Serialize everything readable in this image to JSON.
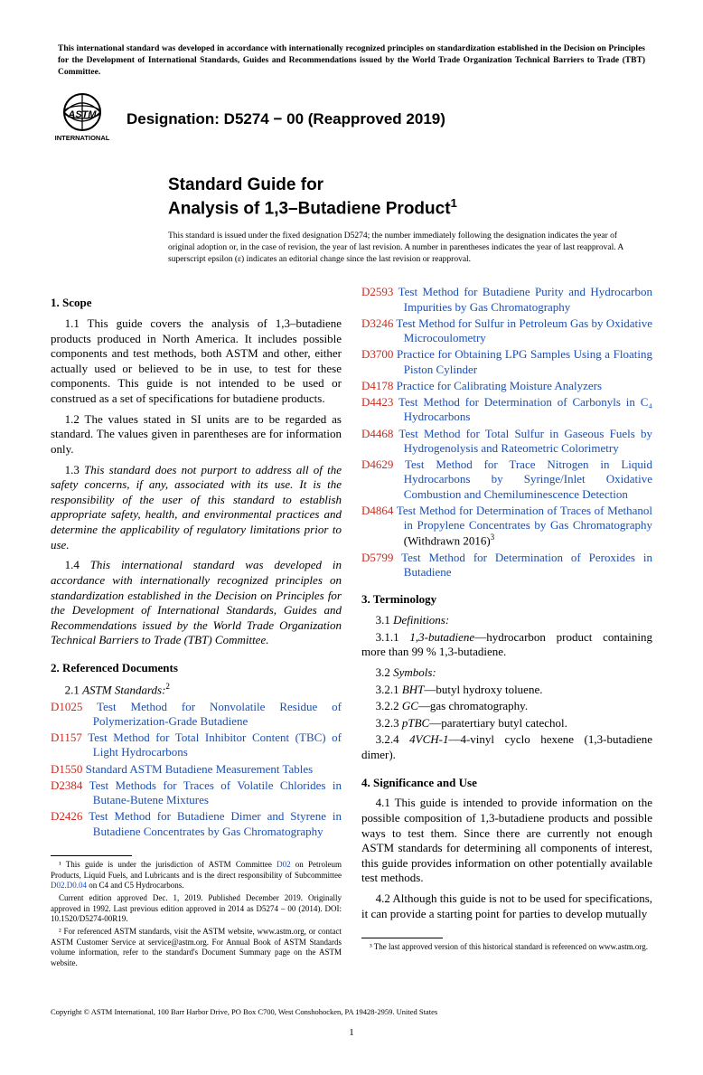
{
  "preamble": "This international standard was developed in accordance with internationally recognized principles on standardization established in the Decision on Principles for the Development of International Standards, Guides and Recommendations issued by the World Trade Organization Technical Barriers to Trade (TBT) Committee.",
  "logo_top": "INTERNATIONAL",
  "designation": "Designation: D5274 − 00 (Reapproved 2019)",
  "title_line1": "Standard Guide for",
  "title_line2": "Analysis of 1,3–Butadiene Product",
  "title_sup": "1",
  "issuance": "This standard is issued under the fixed designation D5274; the number immediately following the designation indicates the year of original adoption or, in the case of revision, the year of last revision. A number in parentheses indicates the year of last reapproval. A superscript epsilon (ε) indicates an editorial change since the last revision or reapproval.",
  "sec1_head": "1. Scope",
  "sec1_1": "1.1 This guide covers the analysis of 1,3–butadiene products produced in North America. It includes possible components and test methods, both ASTM and other, either actually used or believed to be in use, to test for these components. This guide is not intended to be used or construed as a set of specifications for butadiene products.",
  "sec1_2": "1.2 The values stated in SI units are to be regarded as standard. The values given in parentheses are for information only.",
  "sec1_3": "1.3 This standard does not purport to address all of the safety concerns, if any, associated with its use. It is the responsibility of the user of this standard to establish appropriate safety, health, and environmental practices and determine the applicability of regulatory limitations prior to use.",
  "sec1_4": "1.4 This international standard was developed in accordance with internationally recognized principles on standardization established in the Decision on Principles for the Development of International Standards, Guides and Recommendations issued by the World Trade Organization Technical Barriers to Trade (TBT) Committee.",
  "sec2_head": "2. Referenced Documents",
  "sec2_1_label": "2.1 ",
  "sec2_1_text": "ASTM Standards:",
  "sec2_1_sup": "2",
  "refs_left": [
    {
      "code": "D1025",
      "title": "Test Method for Nonvolatile Residue of Polymerization-Grade Butadiene"
    },
    {
      "code": "D1157",
      "title": "Test Method for Total Inhibitor Content (TBC) of Light Hydrocarbons"
    },
    {
      "code": "D1550",
      "title": "Standard ASTM Butadiene Measurement Tables"
    },
    {
      "code": "D2384",
      "title": "Test Methods for Traces of Volatile Chlorides in Butane-Butene Mixtures"
    },
    {
      "code": "D2426",
      "title": "Test Method for Butadiene Dimer and Styrene in Butadiene Concentrates by Gas Chromatography"
    }
  ],
  "refs_right": [
    {
      "code": "D2593",
      "title": "Test Method for Butadiene Purity and Hydrocarbon Impurities by Gas Chromatography"
    },
    {
      "code": "D3246",
      "title": "Test Method for Sulfur in Petroleum Gas by Oxidative Microcoulometry"
    },
    {
      "code": "D3700",
      "title": "Practice for Obtaining LPG Samples Using a Floating Piston Cylinder"
    },
    {
      "code": "D4178",
      "title": "Practice for Calibrating Moisture Analyzers"
    },
    {
      "code": "D4423",
      "title": "Test Method for Determination of Carbonyls in C₄ Hydrocarbons"
    },
    {
      "code": "D4468",
      "title": "Test Method for Total Sulfur in Gaseous Fuels by Hydrogenolysis and Rateometric Colorimetry"
    },
    {
      "code": "D4629",
      "title": "Test Method for Trace Nitrogen in Liquid Hydrocarbons by Syringe/Inlet Oxidative Combustion and Chemiluminescence Detection"
    },
    {
      "code": "D4864",
      "title": "Test Method for Determination of Traces of Methanol in Propylene Concentrates by Gas Chromatography",
      "withdrawn": " (Withdrawn 2016)",
      "sup": "3"
    },
    {
      "code": "D5799",
      "title": "Test Method for Determination of Peroxides in Butadiene"
    }
  ],
  "sec3_head": "3. Terminology",
  "sec3_1": "3.1 ",
  "sec3_1_text": "Definitions:",
  "sec3_1_1_a": "3.1.1 ",
  "sec3_1_1_b": "1,3-butadiene",
  "sec3_1_1_c": "—hydrocarbon product containing more than 99 % 1,3-butadiene.",
  "sec3_2": "3.2 ",
  "sec3_2_text": "Symbols:",
  "sym": [
    {
      "n": "3.2.1 ",
      "t": "BHT",
      "d": "—butyl hydroxy toluene."
    },
    {
      "n": "3.2.2 ",
      "t": "GC",
      "d": "—gas chromatography."
    },
    {
      "n": "3.2.3 ",
      "t": "pTBC",
      "d": "—paratertiary butyl catechol."
    },
    {
      "n": "3.2.4 ",
      "t": "4VCH-1",
      "d": "—4-vinyl cyclo hexene (1,3-butadiene dimer)."
    }
  ],
  "sec4_head": "4. Significance and Use",
  "sec4_1": "4.1 This guide is intended to provide information on the possible composition of 1,3-butadiene products and possible ways to test them. Since there are currently not enough ASTM standards for determining all components of interest, this guide provides information on other potentially available test methods.",
  "sec4_2": "4.2 Although this guide is not to be used for specifications, it can provide a starting point for parties to develop mutually",
  "fn1_a": "¹ This guide is under the jurisdiction of ASTM Committee ",
  "fn1_link": "D02",
  "fn1_b": " on Petroleum Products, Liquid Fuels, and Lubricants and is the direct responsibility of Subcommittee ",
  "fn1_link2": "D02.D0.04",
  "fn1_c": " on C4 and C5 Hydrocarbons.",
  "fn1_p2": "Current edition approved Dec. 1, 2019. Published December 2019. Originally approved in 1992. Last previous edition approved in 2014 as D5274 – 00 (2014). DOI: 10.1520/D5274-00R19.",
  "fn2": "² For referenced ASTM standards, visit the ASTM website, www.astm.org, or contact ASTM Customer Service at service@astm.org. For Annual Book of ASTM Standards volume information, refer to the standard's Document Summary page on the ASTM website.",
  "fn3": "³ The last approved version of this historical standard is referenced on www.astm.org.",
  "footer": "Copyright © ASTM International, 100 Barr Harbor Drive, PO Box C700, West Conshohocken, PA 19428-2959. United States",
  "pagenum": "1"
}
